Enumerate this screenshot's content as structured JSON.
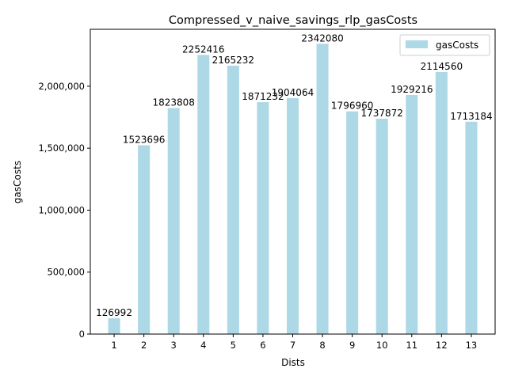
{
  "chart_data": {
    "type": "bar",
    "title": "Compressed_v_naive_savings_rlp_gasCosts",
    "xlabel": "Dists",
    "ylabel": "gasCosts",
    "categories": [
      "1",
      "2",
      "3",
      "4",
      "5",
      "6",
      "7",
      "8",
      "9",
      "10",
      "11",
      "12",
      "13"
    ],
    "series": [
      {
        "name": "gasCosts",
        "values": [
          126992,
          1523696,
          1823808,
          2252416,
          2165232,
          1871232,
          1904064,
          2342080,
          1796960,
          1737872,
          1929216,
          2114560,
          1713184
        ]
      }
    ],
    "data_labels": [
      "126992",
      "1523696",
      "1823808",
      "2252416",
      "2165232",
      "1871232",
      "1904064",
      "2342080",
      "1796960",
      "1737872",
      "1929216",
      "2114560",
      "1713184"
    ],
    "y_ticks": [
      0,
      500000,
      1000000,
      1500000,
      2000000
    ],
    "y_tick_labels": [
      "0",
      "500,000",
      "1,000,000",
      "1,500,000",
      "2,000,000"
    ],
    "ylim": [
      0,
      2459184
    ],
    "legend": "top-right",
    "grid": false,
    "bar_color": "#add8e6"
  }
}
